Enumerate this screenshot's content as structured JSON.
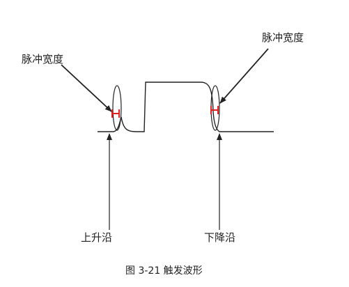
{
  "labels": {
    "pulse_width_left": "脉冲宽度",
    "pulse_width_right": "脉冲宽度",
    "rising_edge": "上升沿",
    "falling_edge": "下降沿"
  },
  "caption": "图 3-21 触发波形",
  "colors": {
    "waveform": "#222222",
    "pulse_marker": "#e02020",
    "text": "#222222"
  }
}
